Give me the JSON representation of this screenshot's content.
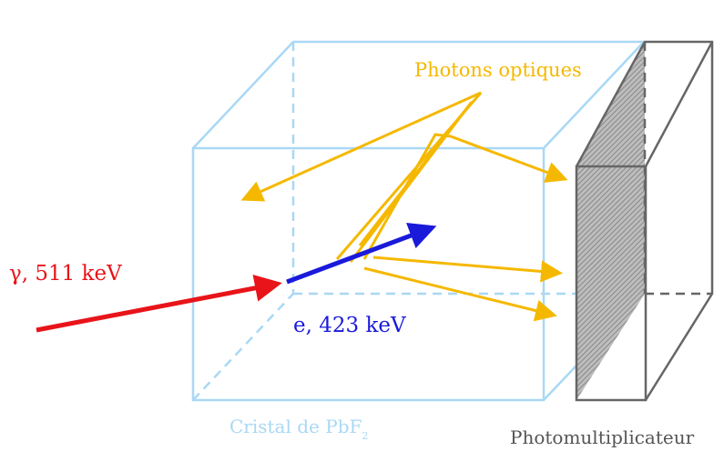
{
  "labels": {
    "photons": "Photons optiques",
    "gamma": "γ, 511 keV",
    "electron": "e, 423 keV",
    "crystal": "Cristal de PbF",
    "crystal_sub": "2",
    "pmt": "Photomultiplicateur"
  }
}
